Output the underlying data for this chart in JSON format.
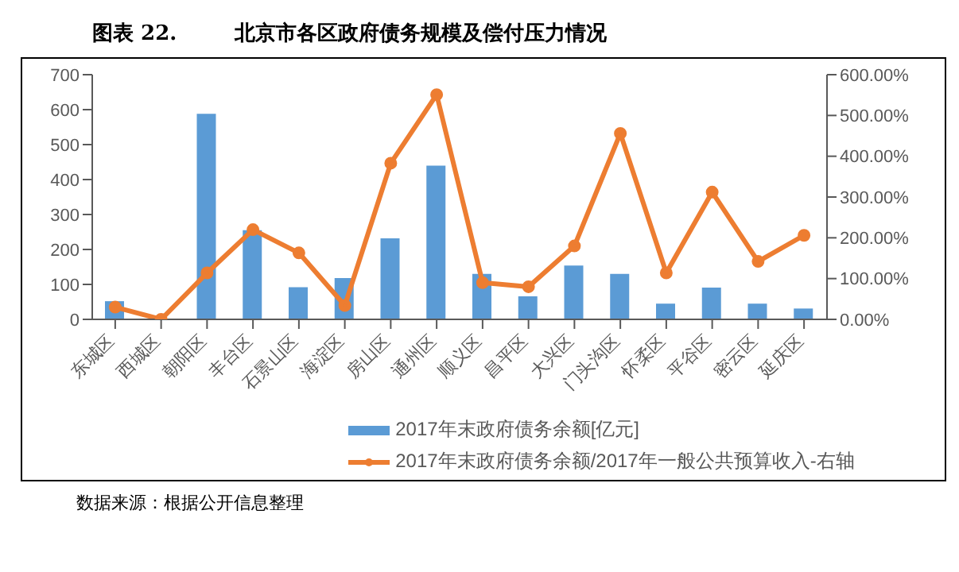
{
  "chart_data": {
    "type": "bar",
    "title": "图表 22.        北京市各区政府债务规模及偿付压力情况",
    "categories": [
      "东城区",
      "西城区",
      "朝阳区",
      "丰台区",
      "石景山区",
      "海淀区",
      "房山区",
      "通州区",
      "顺义区",
      "昌平区",
      "大兴区",
      "门头沟区",
      "怀柔区",
      "平谷区",
      "密云区",
      "延庆区"
    ],
    "series": [
      {
        "name": "2017年末政府债务余额[亿元]",
        "color": "#5b9bd5",
        "values": [
          52,
          0,
          588,
          255,
          92,
          118,
          232,
          440,
          130,
          66,
          154,
          130,
          45,
          91,
          45,
          31
        ]
      },
      {
        "name": "2017年末政府债务余额/2017年一般公共预算收入-右轴",
        "type": "line",
        "axis": "y2",
        "color": "#ed7d31",
        "marker": "circle",
        "values": [
          30,
          0,
          114,
          220,
          163,
          34,
          383,
          551,
          90,
          80,
          180,
          456,
          114,
          312,
          142,
          206
        ]
      }
    ],
    "ylim": [
      0,
      700
    ],
    "yticks": [
      0,
      100,
      200,
      300,
      400,
      500,
      600,
      700
    ],
    "y2lim": [
      0,
      600
    ],
    "y2ticks": [
      {
        "value": 0,
        "label": "0.00%"
      },
      {
        "value": 100,
        "label": "100.00%"
      },
      {
        "value": 200,
        "label": "200.00%"
      },
      {
        "value": 300,
        "label": "300.00%"
      },
      {
        "value": 400,
        "label": "400.00%"
      },
      {
        "value": 500,
        "label": "500.00%"
      },
      {
        "value": 600,
        "label": "600.00%"
      }
    ],
    "grid": false,
    "legend": "bottom",
    "annotations": [
      "数据来源：根据公开信息整理"
    ]
  }
}
